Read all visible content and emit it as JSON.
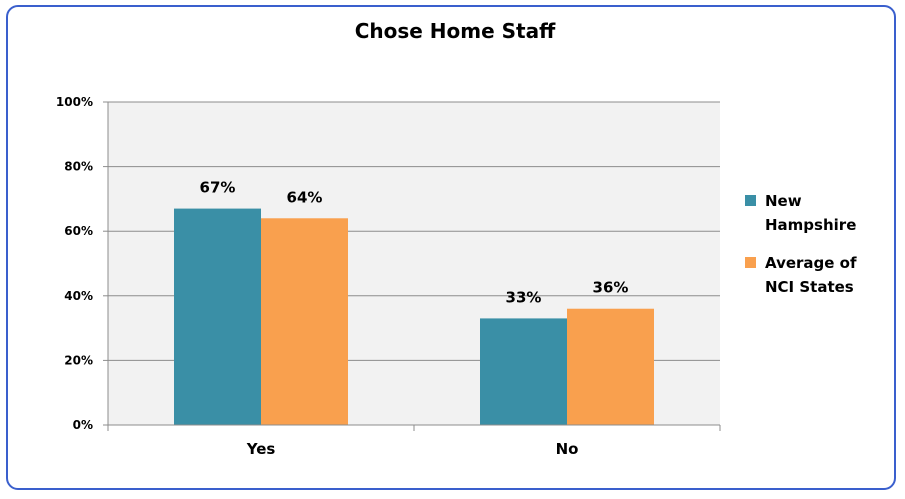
{
  "chart_data": {
    "type": "bar",
    "title": "Chose Home Staff",
    "categories": [
      "Yes",
      "No"
    ],
    "series": [
      {
        "name": "New Hampshire",
        "values": [
          67,
          33
        ],
        "labels": [
          "67%",
          "33%"
        ],
        "color": "#3a8fa6"
      },
      {
        "name": "Average of NCI States",
        "values": [
          64,
          36
        ],
        "labels": [
          "64%",
          "36%"
        ],
        "color": "#f9a04e"
      }
    ],
    "legend_lines": [
      [
        "New",
        "Hampshire"
      ],
      [
        "Average of",
        "NCI States"
      ]
    ],
    "y_ticks": [
      "0%",
      "20%",
      "40%",
      "60%",
      "80%",
      "100%"
    ],
    "ylim": [
      0,
      100
    ],
    "grid": true,
    "legend_position": "right",
    "plot_bg": "#f2f2f2",
    "frame_color": "#3a5fcd"
  }
}
